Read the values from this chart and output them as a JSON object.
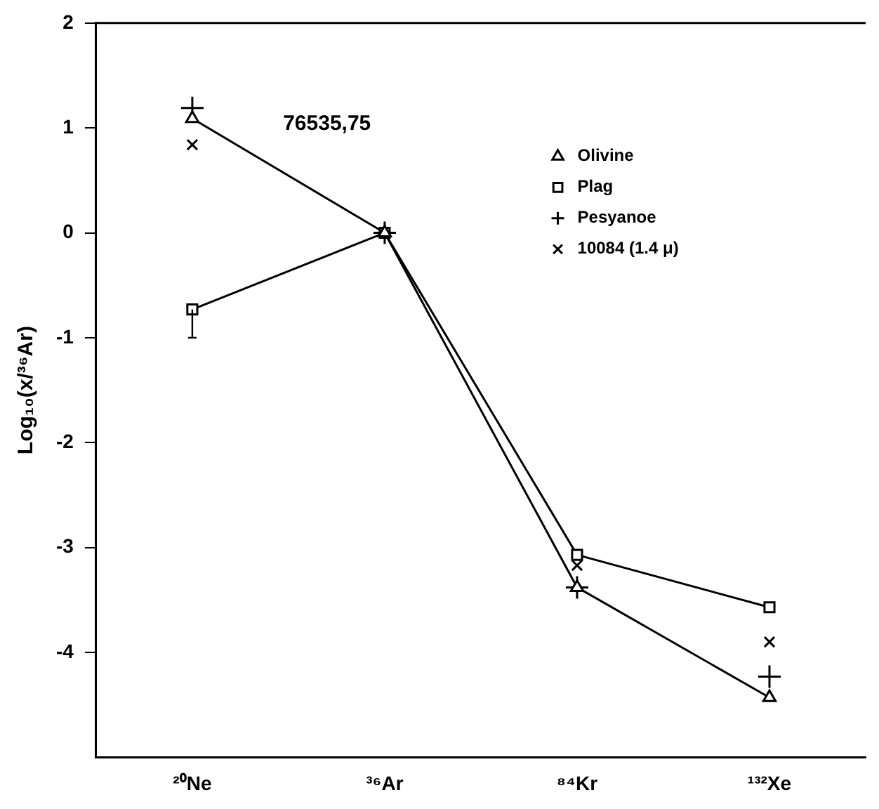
{
  "chart_data": {
    "type": "line",
    "title": "76535,75",
    "ylabel": "Log₁₀(x/³⁶Ar)",
    "categories": [
      "²⁰Ne",
      "³⁶Ar",
      "⁸⁴Kr",
      "¹³²Xe"
    ],
    "series": [
      {
        "name": "Olivine",
        "color": "#000000",
        "marker": "triangle",
        "values": [
          1.09,
          0,
          -3.38,
          -4.43
        ]
      },
      {
        "name": "Plag",
        "color": "#000000",
        "marker": "square",
        "values": [
          -0.73,
          0,
          -3.07,
          -3.57
        ],
        "errors": [
          [
            -1.0,
            -0.73
          ],
          null,
          null,
          null
        ]
      },
      {
        "name": "Pesyanoe",
        "type": "scatter",
        "color": "#000000",
        "marker": "cross",
        "values": [
          1.19,
          0,
          -3.38,
          -4.23
        ]
      },
      {
        "name": "10084 (1.4 μ)",
        "type": "scatter",
        "color": "#000000",
        "marker": "x",
        "values": [
          0.84,
          0,
          -3.17,
          -3.9
        ]
      }
    ],
    "ylim": [
      -5,
      2
    ],
    "yticks": [
      2,
      1,
      0,
      -1,
      -2,
      -3,
      -4
    ],
    "grid": false,
    "legend": "top right"
  }
}
